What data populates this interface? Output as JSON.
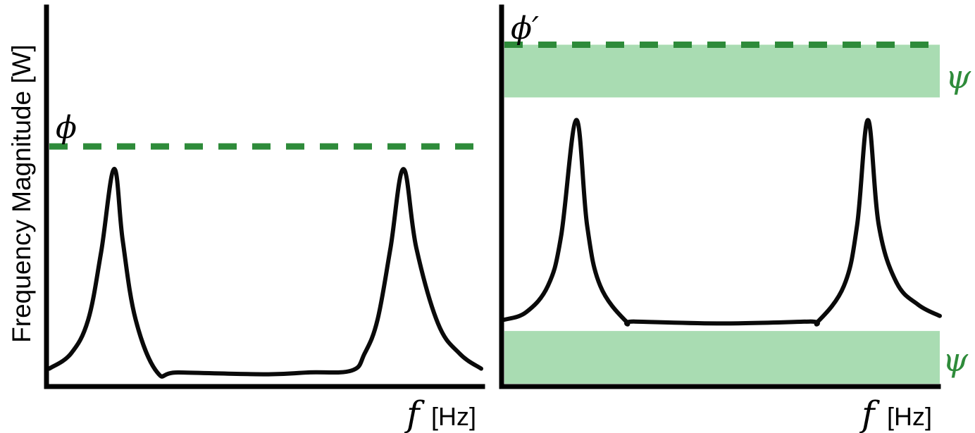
{
  "figure": {
    "ylabel": "Frequency Magnitude [W]"
  },
  "colors": {
    "axis": "#000000",
    "curve": "#0a0a0a",
    "threshold_line": "#2e8b3a",
    "band_fill": "#a9dcb2",
    "psi_text": "#2e8b3a"
  },
  "chart_data": [
    {
      "type": "line",
      "panel": "left",
      "x_symbol": "f",
      "x_unit": "[Hz]",
      "ylim": [
        0,
        1
      ],
      "xlim": [
        0,
        1
      ],
      "threshold": {
        "label": "ϕ",
        "y": 0.63,
        "style": "dashed"
      },
      "series": [
        {
          "x": [
            0.0,
            0.05,
            0.09,
            0.12,
            0.15,
            0.17,
            0.2,
            0.25,
            0.3,
            0.5,
            0.6,
            0.7,
            0.73,
            0.76,
            0.79,
            0.82,
            0.85,
            0.9,
            0.95,
            1.0
          ],
          "y": [
            0.04,
            0.08,
            0.17,
            0.35,
            0.57,
            0.38,
            0.17,
            0.03,
            0.03,
            0.025,
            0.03,
            0.035,
            0.08,
            0.17,
            0.36,
            0.57,
            0.36,
            0.16,
            0.08,
            0.04
          ]
        }
      ]
    },
    {
      "type": "line",
      "panel": "right",
      "x_symbol": "f",
      "x_unit": "[Hz]",
      "ylim": [
        0,
        1
      ],
      "xlim": [
        0,
        1
      ],
      "threshold": {
        "label": "ϕ′",
        "y": 0.9,
        "style": "dashed"
      },
      "bands": [
        {
          "label": "ψ",
          "y_range": [
            0.76,
            0.9
          ]
        },
        {
          "label": "ψ",
          "y_range": [
            0.0,
            0.14
          ]
        }
      ],
      "series": [
        {
          "x": [
            0.0,
            0.05,
            0.1,
            0.13,
            0.165,
            0.19,
            0.22,
            0.28,
            0.3,
            0.5,
            0.7,
            0.72,
            0.78,
            0.81,
            0.835,
            0.86,
            0.9,
            0.95,
            1.0
          ],
          "y": [
            0.17,
            0.19,
            0.26,
            0.39,
            0.7,
            0.42,
            0.26,
            0.165,
            0.165,
            0.16,
            0.165,
            0.165,
            0.26,
            0.42,
            0.7,
            0.42,
            0.27,
            0.21,
            0.18
          ]
        }
      ]
    }
  ]
}
